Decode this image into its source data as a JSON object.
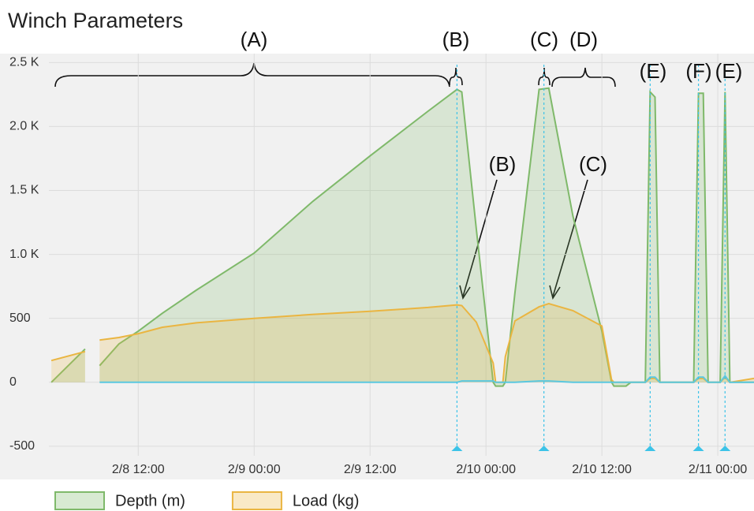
{
  "chart_data": {
    "type": "area",
    "title": "Winch Parameters",
    "x": [
      "2/8 03:00",
      "2/8 06:30",
      "2/8 07:00",
      "2/8 08:00",
      "2/8 10:00",
      "2/8 12:00",
      "2/8 14:30",
      "2/8 18:00",
      "2/9 00:00",
      "2/9 06:00",
      "2/9 12:00",
      "2/9 18:00",
      "2/9 21:00",
      "2/9 21:30",
      "2/9 23:00",
      "2/10 00:45",
      "2/10 01:00",
      "2/10 01:45",
      "2/10 02:00",
      "2/10 03:00",
      "2/10 05:30",
      "2/10 06:30",
      "2/10 09:00",
      "2/10 12:00",
      "2/10 13:00",
      "2/10 13:15",
      "2/10 14:30",
      "2/10 15:00",
      "2/10 16:30",
      "2/10 17:00",
      "2/10 17:30",
      "2/10 18:00",
      "2/10 21:30",
      "2/10 22:00",
      "2/10 22:30",
      "2/10 23:00",
      "2/11 00:15",
      "2/11 00:45",
      "2/11 01:15",
      "2/11 03:45"
    ],
    "series": [
      {
        "name": "Depth (m)",
        "color": "#7fb96a",
        "values": [
          0,
          260,
          null,
          130,
          300,
          400,
          540,
          720,
          1010,
          1410,
          1770,
          2120,
          2290,
          2270,
          1200,
          0,
          -30,
          -30,
          0,
          700,
          2290,
          2300,
          1300,
          400,
          0,
          -30,
          -30,
          0,
          0,
          2270,
          2230,
          0,
          0,
          2260,
          2260,
          0,
          0,
          2270,
          0,
          0
        ]
      },
      {
        "name": "Load (kg)",
        "color": "#eab541",
        "values": [
          170,
          240,
          null,
          330,
          350,
          380,
          430,
          465,
          500,
          530,
          555,
          585,
          605,
          600,
          470,
          150,
          0,
          0,
          200,
          480,
          590,
          615,
          560,
          440,
          20,
          0,
          0,
          0,
          0,
          30,
          30,
          0,
          0,
          30,
          30,
          0,
          0,
          40,
          0,
          30
        ]
      },
      {
        "color": "#5bc8e0",
        "values": [
          null,
          null,
          null,
          0,
          0,
          0,
          0,
          0,
          0,
          0,
          0,
          0,
          0,
          10,
          10,
          10,
          0,
          0,
          0,
          0,
          10,
          10,
          0,
          0,
          0,
          0,
          0,
          0,
          0,
          40,
          40,
          0,
          0,
          40,
          40,
          0,
          0,
          50,
          0,
          0
        ]
      }
    ],
    "xlim": [
      "2/8 02:45",
      "2/11 03:45"
    ],
    "xticks": [
      "2/8 12:00",
      "2/9 00:00",
      "2/9 12:00",
      "2/10 00:00",
      "2/10 12:00",
      "2/11 00:00"
    ],
    "ylim": [
      -760,
      2570
    ],
    "yticks": [
      {
        "value": 2500,
        "label": "2.5 K"
      },
      {
        "value": 2000,
        "label": "2.0 K"
      },
      {
        "value": 1500,
        "label": "1.5 K"
      },
      {
        "value": 1000,
        "label": "1.0 K"
      },
      500,
      0,
      -500
    ],
    "grid": true,
    "legend": "bottom-left",
    "event_markers": [
      "2/9 21:00",
      "2/10 06:00",
      "2/10 17:00",
      "2/10 22:00",
      "2/11 00:45"
    ],
    "annotations": [
      "(A)",
      "(B)",
      "(C)",
      "(D)",
      "(E)",
      "(F)",
      "(E)",
      "(B)",
      "(C)"
    ]
  }
}
